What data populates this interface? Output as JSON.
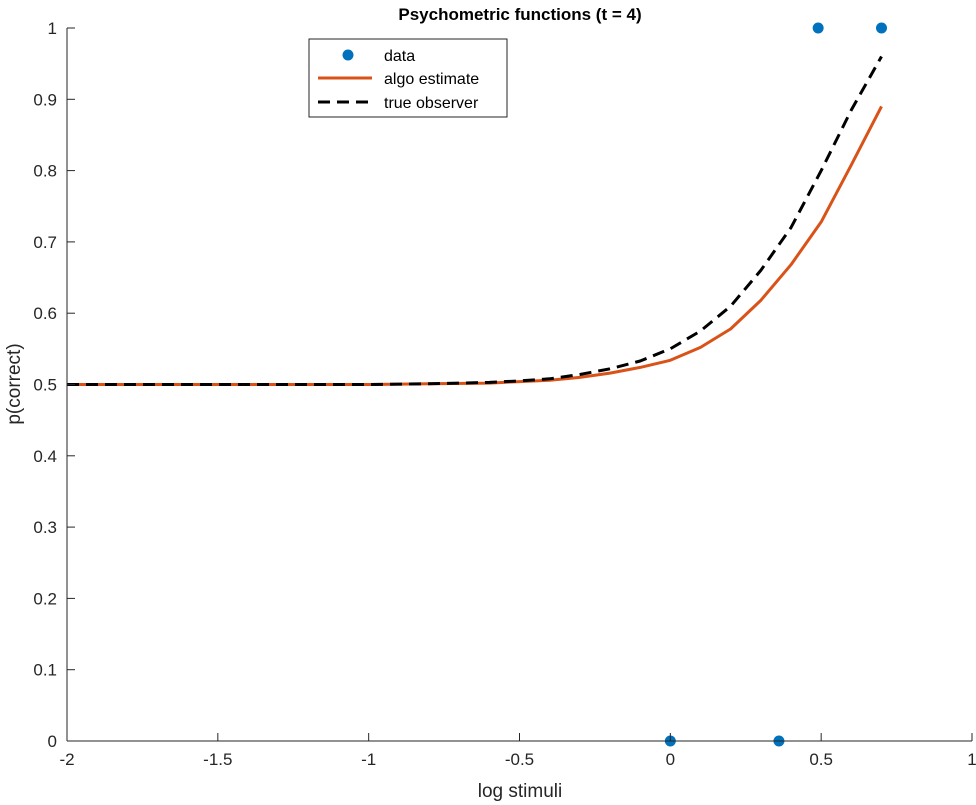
{
  "chart_data": {
    "type": "line",
    "title": "Psychometric functions (t = 4)",
    "xlabel": "log stimuli",
    "ylabel": "p(correct)",
    "xlim": [
      -2,
      1
    ],
    "ylim": [
      0,
      1
    ],
    "xticks": [
      -2,
      -1.5,
      -1,
      -0.5,
      0,
      0.5,
      1
    ],
    "xtick_labels": [
      "-2",
      "-1.5",
      "-1",
      "-0.5",
      "0",
      "0.5",
      "1"
    ],
    "yticks": [
      0,
      0.1,
      0.2,
      0.3,
      0.4,
      0.5,
      0.6,
      0.7,
      0.8,
      0.9,
      1
    ],
    "ytick_labels": [
      "0",
      "0.1",
      "0.2",
      "0.3",
      "0.4",
      "0.5",
      "0.6",
      "0.7",
      "0.8",
      "0.9",
      "1"
    ],
    "grid": false,
    "legend_position": "top-center",
    "series": [
      {
        "name": "data",
        "kind": "scatter",
        "color": "#0072BD",
        "x": [
          0,
          0.36,
          0.49,
          0.7
        ],
        "y": [
          0,
          0,
          1,
          1
        ]
      },
      {
        "name": "algo estimate",
        "kind": "line",
        "style": "solid",
        "color": "#D95319",
        "x": [
          -2,
          -1.5,
          -1,
          -0.8,
          -0.6,
          -0.5,
          -0.4,
          -0.3,
          -0.2,
          -0.1,
          0,
          0.1,
          0.2,
          0.3,
          0.4,
          0.5,
          0.6,
          0.7
        ],
        "y": [
          0.5,
          0.5,
          0.5,
          0.501,
          0.502,
          0.504,
          0.506,
          0.51,
          0.516,
          0.524,
          0.534,
          0.552,
          0.578,
          0.618,
          0.668,
          0.728,
          0.808,
          0.89
        ]
      },
      {
        "name": "true observer",
        "kind": "line",
        "style": "dashed",
        "color": "#000000",
        "x": [
          -2,
          -1.5,
          -1,
          -0.8,
          -0.6,
          -0.5,
          -0.4,
          -0.3,
          -0.2,
          -0.1,
          0,
          0.1,
          0.2,
          0.3,
          0.4,
          0.5,
          0.6,
          0.7
        ],
        "y": [
          0.5,
          0.5,
          0.5,
          0.501,
          0.503,
          0.505,
          0.508,
          0.514,
          0.522,
          0.533,
          0.55,
          0.575,
          0.61,
          0.66,
          0.72,
          0.8,
          0.885,
          0.96
        ]
      }
    ]
  }
}
